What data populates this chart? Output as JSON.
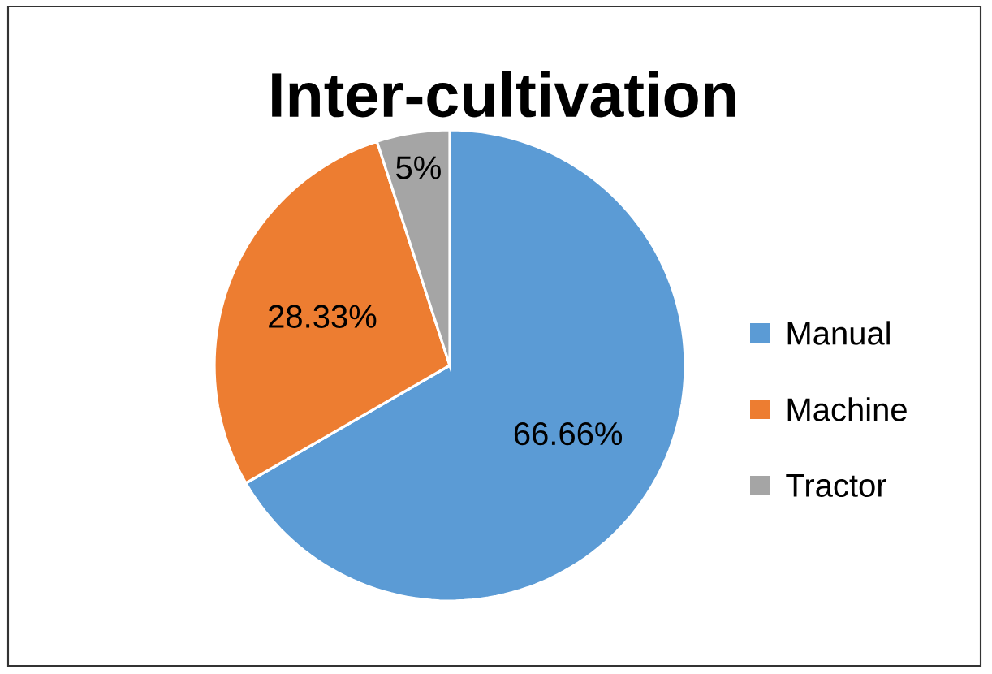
{
  "chart_data": {
    "type": "pie",
    "title": "Inter-cultivation",
    "categories": [
      "Manual",
      "Machine",
      "Tractor"
    ],
    "values": [
      66.66,
      28.33,
      5
    ],
    "colors": [
      "#5b9bd5",
      "#ed7d31",
      "#a5a5a5"
    ],
    "value_labels": [
      "66.66%",
      "28.33%",
      "5%"
    ],
    "legend": "right"
  }
}
